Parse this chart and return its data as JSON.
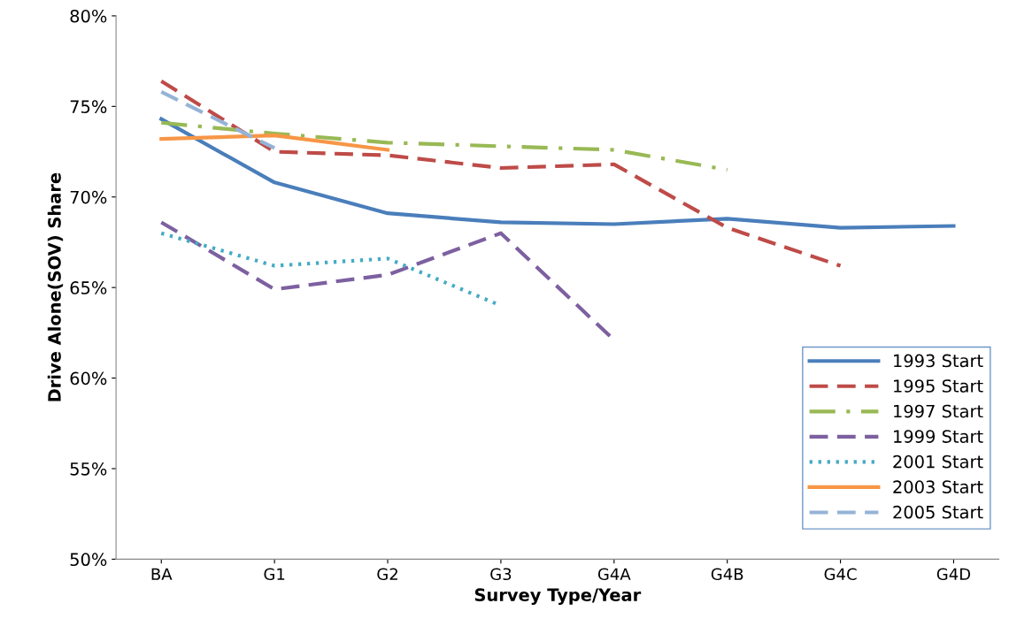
{
  "chart_data": {
    "type": "line",
    "xlabel": "Survey Type/Year",
    "ylabel": "Drive Alone(SOV) Share",
    "categories": [
      "BA",
      "G1",
      "G2",
      "G3",
      "G4A",
      "G4B",
      "G4C",
      "G4D"
    ],
    "ylim": [
      50,
      80
    ],
    "yticks": [
      {
        "value": 50,
        "label": "50%"
      },
      {
        "value": 55,
        "label": "55%"
      },
      {
        "value": 60,
        "label": "60%"
      },
      {
        "value": 65,
        "label": "65%"
      },
      {
        "value": 70,
        "label": "70%"
      },
      {
        "value": 75,
        "label": "75%"
      },
      {
        "value": 80,
        "label": "80%"
      }
    ],
    "grid": false,
    "legend": "bottom right",
    "marker": "none",
    "series": [
      {
        "name": "1993 Start",
        "color": "#4a7ebb",
        "line_style": "solid",
        "values": [
          74.3,
          70.8,
          69.1,
          68.6,
          68.5,
          68.8,
          68.3,
          68.4
        ]
      },
      {
        "name": "1995 Start",
        "color": "#be4b48",
        "line_style": "dashed",
        "values": [
          76.4,
          72.5,
          72.3,
          71.6,
          71.8,
          68.3,
          66.2,
          null
        ]
      },
      {
        "name": "1997 Start",
        "color": "#98b954",
        "line_style": "dashdot",
        "values": [
          74.1,
          73.5,
          73.0,
          72.8,
          72.6,
          71.5,
          null,
          null
        ]
      },
      {
        "name": "1999 Start",
        "color": "#7d60a0",
        "line_style": "dashed",
        "values": [
          68.6,
          64.9,
          65.7,
          68.0,
          62.1,
          null,
          null,
          null
        ]
      },
      {
        "name": "2001 Start",
        "color": "#46aac5",
        "line_style": "dotted",
        "values": [
          68.0,
          66.2,
          66.6,
          64.0,
          null,
          null,
          null,
          null
        ]
      },
      {
        "name": "2003 Start",
        "color": "#f79646",
        "line_style": "solid",
        "values": [
          73.2,
          73.4,
          72.6,
          null,
          null,
          null,
          null,
          null
        ]
      },
      {
        "name": "2005 Start",
        "color": "#95b3d7",
        "line_style": "dashed",
        "values": [
          75.8,
          72.7,
          null,
          null,
          null,
          null,
          null,
          null
        ]
      }
    ]
  }
}
